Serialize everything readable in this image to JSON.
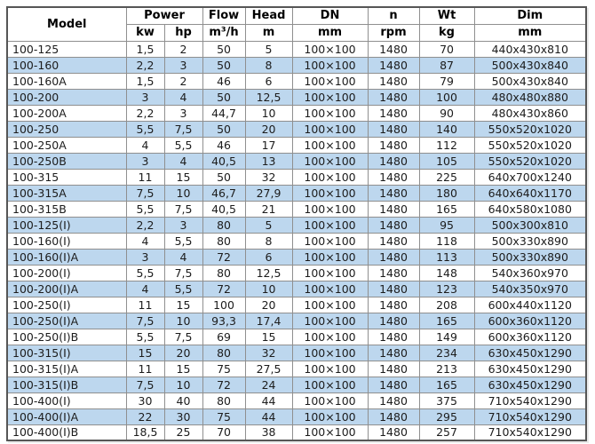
{
  "colors": {
    "stripe": "#BDD7EE",
    "grid": "#8f8f8f",
    "outer_border": "#565656",
    "header_bg": "#ffffff",
    "text": "#1c1c1c"
  },
  "table": {
    "columns": {
      "model": "Model",
      "power": "Power",
      "power_kw": "kw",
      "power_hp": "hp",
      "flow": "Flow",
      "flow_unit": "m³/h",
      "head": "Head",
      "head_unit": "m",
      "dn": "DN",
      "dn_unit": "mm",
      "n": "n",
      "n_unit": "rpm",
      "wt": "Wt",
      "wt_unit": "kg",
      "dim": "Dim",
      "dim_unit": "mm"
    },
    "rows": [
      {
        "model": "100-125",
        "kw": "1,5",
        "hp": "2",
        "flow": "50",
        "head": "5",
        "dn": "100×100",
        "rpm": "1480",
        "wt": "70",
        "dim": "440x430x810"
      },
      {
        "model": "100-160",
        "kw": "2,2",
        "hp": "3",
        "flow": "50",
        "head": "8",
        "dn": "100×100",
        "rpm": "1480",
        "wt": "87",
        "dim": "500x430x840"
      },
      {
        "model": "100-160A",
        "kw": "1,5",
        "hp": "2",
        "flow": "46",
        "head": "6",
        "dn": "100×100",
        "rpm": "1480",
        "wt": "79",
        "dim": "500x430x840"
      },
      {
        "model": "100-200",
        "kw": "3",
        "hp": "4",
        "flow": "50",
        "head": "12,5",
        "dn": "100×100",
        "rpm": "1480",
        "wt": "100",
        "dim": "480x480x880"
      },
      {
        "model": "100-200A",
        "kw": "2,2",
        "hp": "3",
        "flow": "44,7",
        "head": "10",
        "dn": "100×100",
        "rpm": "1480",
        "wt": "90",
        "dim": "480x430x860"
      },
      {
        "model": "100-250",
        "kw": "5,5",
        "hp": "7,5",
        "flow": "50",
        "head": "20",
        "dn": "100×100",
        "rpm": "1480",
        "wt": "140",
        "dim": "550x520x1020"
      },
      {
        "model": "100-250A",
        "kw": "4",
        "hp": "5,5",
        "flow": "46",
        "head": "17",
        "dn": "100×100",
        "rpm": "1480",
        "wt": "112",
        "dim": "550x520x1020"
      },
      {
        "model": "100-250B",
        "kw": "3",
        "hp": "4",
        "flow": "40,5",
        "head": "13",
        "dn": "100×100",
        "rpm": "1480",
        "wt": "105",
        "dim": "550x520x1020"
      },
      {
        "model": "100-315",
        "kw": "11",
        "hp": "15",
        "flow": "50",
        "head": "32",
        "dn": "100×100",
        "rpm": "1480",
        "wt": "225",
        "dim": "640x700x1240"
      },
      {
        "model": "100-315A",
        "kw": "7,5",
        "hp": "10",
        "flow": "46,7",
        "head": "27,9",
        "dn": "100×100",
        "rpm": "1480",
        "wt": "180",
        "dim": "640x640x1170"
      },
      {
        "model": "100-315B",
        "kw": "5,5",
        "hp": "7,5",
        "flow": "40,5",
        "head": "21",
        "dn": "100×100",
        "rpm": "1480",
        "wt": "165",
        "dim": "640x580x1080"
      },
      {
        "model": "100-125(I)",
        "kw": "2,2",
        "hp": "3",
        "flow": "80",
        "head": "5",
        "dn": "100×100",
        "rpm": "1480",
        "wt": "95",
        "dim": "500x300x810"
      },
      {
        "model": "100-160(I)",
        "kw": "4",
        "hp": "5,5",
        "flow": "80",
        "head": "8",
        "dn": "100×100",
        "rpm": "1480",
        "wt": "118",
        "dim": "500x330x890"
      },
      {
        "model": "100-160(I)A",
        "kw": "3",
        "hp": "4",
        "flow": "72",
        "head": "6",
        "dn": "100×100",
        "rpm": "1480",
        "wt": "113",
        "dim": "500x330x890"
      },
      {
        "model": "100-200(I)",
        "kw": "5,5",
        "hp": "7,5",
        "flow": "80",
        "head": "12,5",
        "dn": "100×100",
        "rpm": "1480",
        "wt": "148",
        "dim": "540x360x970"
      },
      {
        "model": "100-200(I)A",
        "kw": "4",
        "hp": "5,5",
        "flow": "72",
        "head": "10",
        "dn": "100×100",
        "rpm": "1480",
        "wt": "123",
        "dim": "540x350x970"
      },
      {
        "model": "100-250(I)",
        "kw": "11",
        "hp": "15",
        "flow": "100",
        "head": "20",
        "dn": "100×100",
        "rpm": "1480",
        "wt": "208",
        "dim": "600x440x1120"
      },
      {
        "model": "100-250(I)A",
        "kw": "7,5",
        "hp": "10",
        "flow": "93,3",
        "head": "17,4",
        "dn": "100×100",
        "rpm": "1480",
        "wt": "165",
        "dim": "600x360x1120"
      },
      {
        "model": "100-250(I)B",
        "kw": "5,5",
        "hp": "7,5",
        "flow": "69",
        "head": "15",
        "dn": "100×100",
        "rpm": "1480",
        "wt": "149",
        "dim": "600x360x1120"
      },
      {
        "model": "100-315(I)",
        "kw": "15",
        "hp": "20",
        "flow": "80",
        "head": "32",
        "dn": "100×100",
        "rpm": "1480",
        "wt": "234",
        "dim": "630x450x1290"
      },
      {
        "model": "100-315(I)A",
        "kw": "11",
        "hp": "15",
        "flow": "75",
        "head": "27,5",
        "dn": "100×100",
        "rpm": "1480",
        "wt": "213",
        "dim": "630x450x1290"
      },
      {
        "model": "100-315(I)B",
        "kw": "7,5",
        "hp": "10",
        "flow": "72",
        "head": "24",
        "dn": "100×100",
        "rpm": "1480",
        "wt": "165",
        "dim": "630x450x1290"
      },
      {
        "model": "100-400(I)",
        "kw": "30",
        "hp": "40",
        "flow": "80",
        "head": "44",
        "dn": "100×100",
        "rpm": "1480",
        "wt": "375",
        "dim": "710x540x1290"
      },
      {
        "model": "100-400(I)A",
        "kw": "22",
        "hp": "30",
        "flow": "75",
        "head": "44",
        "dn": "100×100",
        "rpm": "1480",
        "wt": "295",
        "dim": "710x540x1290"
      },
      {
        "model": "100-400(I)B",
        "kw": "18,5",
        "hp": "25",
        "flow": "70",
        "head": "38",
        "dn": "100×100",
        "rpm": "1480",
        "wt": "257",
        "dim": "710x540x1290"
      }
    ]
  }
}
